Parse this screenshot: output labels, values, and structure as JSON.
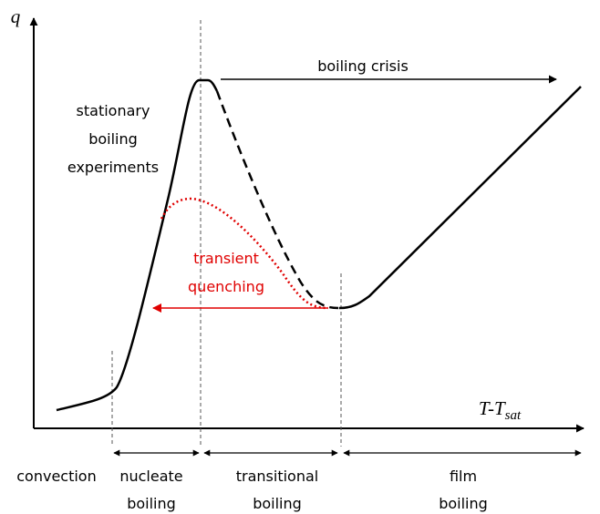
{
  "axes": {
    "y_label": "q",
    "x_label": "T-T",
    "x_label_sub": "sat"
  },
  "annotations": {
    "boiling_crisis": "boiling crisis",
    "stationary": [
      "stationary",
      "boiling",
      "experiments"
    ],
    "transient": [
      "transient",
      "quenching"
    ]
  },
  "regions": [
    {
      "lines": [
        "convection"
      ]
    },
    {
      "lines": [
        "nucleate",
        "boiling"
      ]
    },
    {
      "lines": [
        "transitional",
        "boiling"
      ]
    },
    {
      "lines": [
        "film",
        "boiling"
      ]
    }
  ]
}
